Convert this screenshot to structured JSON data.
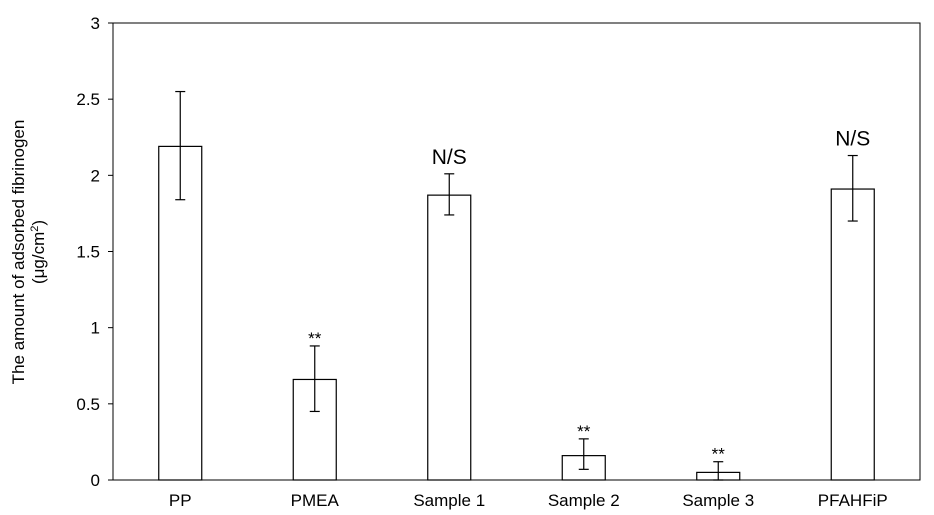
{
  "chart_data": {
    "type": "bar",
    "categories": [
      "PP",
      "PMEA",
      "Sample 1",
      "Sample 2",
      "Sample 3",
      "PFAHFiP"
    ],
    "values": [
      2.19,
      0.66,
      1.87,
      0.16,
      0.05,
      1.91
    ],
    "error_low": [
      1.84,
      0.45,
      1.74,
      0.07,
      0.0,
      1.7
    ],
    "error_high": [
      2.55,
      0.88,
      2.01,
      0.27,
      0.12,
      2.13
    ],
    "annotations": [
      "",
      "**",
      "N/S",
      "**",
      "**",
      "N/S"
    ],
    "ylabel_line1": "The amount of adsorbed fibrinogen",
    "ylabel_line2_pre": "(μg/cm",
    "ylabel_line2_sup": "2",
    "ylabel_line2_post": ")",
    "xlabel": "",
    "ylim": [
      0,
      3
    ],
    "yticks": [
      "0",
      "0.5",
      "1",
      "1.5",
      "2",
      "2.5",
      "3"
    ],
    "ytick_values": [
      0,
      0.5,
      1,
      1.5,
      2,
      2.5,
      3
    ],
    "grid": false,
    "bar_fill": "#ffffff",
    "bar_stroke": "#000000"
  }
}
